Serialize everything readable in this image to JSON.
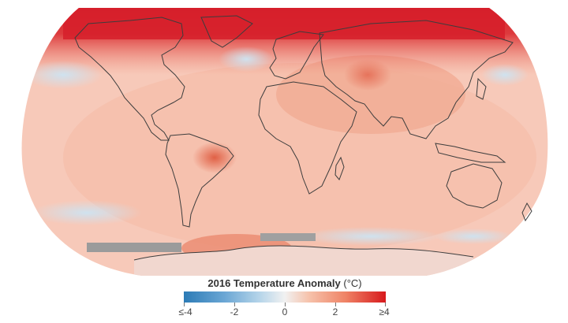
{
  "map": {
    "projection": "Robinson",
    "colors": {
      "land_outline": "#3d3d3d",
      "no_data": "#9b9b9b",
      "cool_anomaly": "#c6dff0",
      "neutral": "#f3f3f3",
      "warm_anomaly": "#f4b49e",
      "strong_warm_anomaly": "#d7191c"
    }
  },
  "legend": {
    "title": "2016 Temperature Anomaly",
    "unit": "(°C)",
    "ticks": [
      "≤-4",
      "-2",
      "0",
      "2",
      "≥4"
    ],
    "scale_min": -4,
    "scale_max": 4,
    "colors": [
      "#2c7bb6",
      "#abd9e9",
      "#f1f1f1",
      "#fdae61",
      "#d7191c"
    ]
  }
}
